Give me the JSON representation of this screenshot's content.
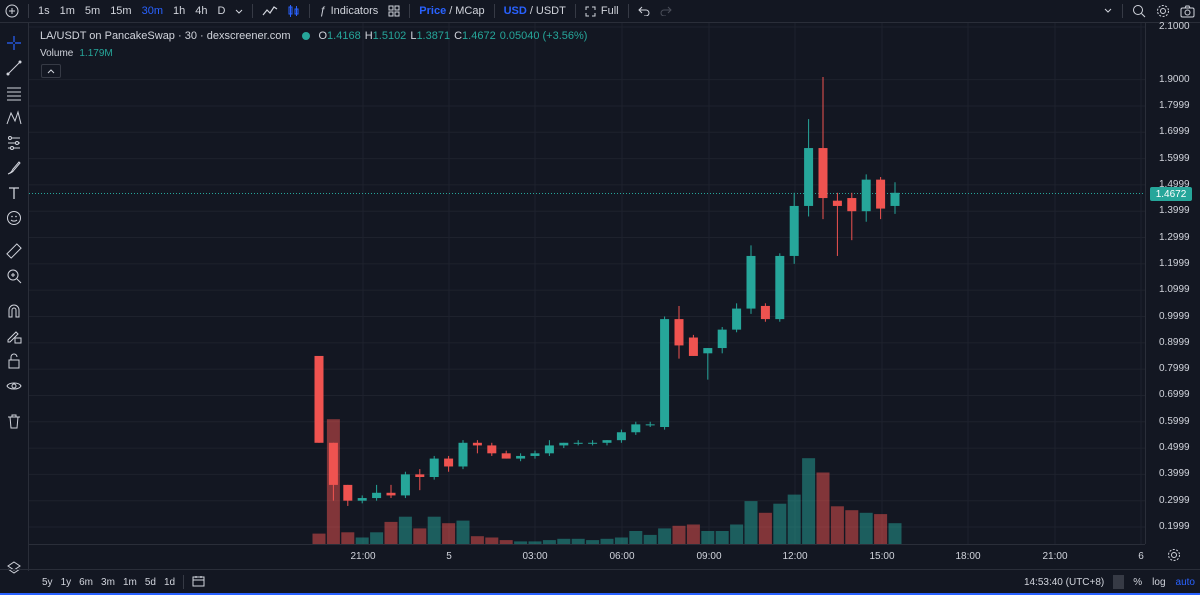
{
  "toolbar": {
    "intervals": [
      "1s",
      "1m",
      "5m",
      "15m",
      "30m",
      "1h",
      "4h",
      "D"
    ],
    "active_interval": "30m",
    "indicators_label": "Indicators",
    "price_label": "Price",
    "mcap_label": "MCap",
    "usd_label": "USD",
    "usdt_label": "USDT",
    "full_label": "Full",
    "slash": "/"
  },
  "legend": {
    "symbol": "LA/USDT on PancakeSwap · 30 · dexscreener.com",
    "o_key": "O",
    "o_val": "1.4168",
    "h_key": "H",
    "h_val": "1.5102",
    "l_key": "L",
    "l_val": "1.3871",
    "c_key": "C",
    "c_val": "1.4672",
    "change": "0.05040 (+3.56%)",
    "volume_label": "Volume",
    "volume_value": "1.179M"
  },
  "price_axis": {
    "ticks": [
      "2.1000",
      "1.9000",
      "1.7999",
      "1.6999",
      "1.5999",
      "1.4999",
      "1.3999",
      "1.2999",
      "1.1999",
      "1.0999",
      "0.9999",
      "0.8999",
      "0.7999",
      "0.6999",
      "0.5999",
      "0.4999",
      "0.3999",
      "0.2999",
      "0.1999"
    ],
    "last_price": "1.4672"
  },
  "time_axis": {
    "ticks": [
      "21:00",
      "5",
      "03:00",
      "06:00",
      "09:00",
      "12:00",
      "15:00",
      "18:00",
      "21:00",
      "6"
    ]
  },
  "bottom": {
    "ranges": [
      "5y",
      "1y",
      "6m",
      "3m",
      "1m",
      "5d",
      "1d"
    ],
    "clock": "14:53:40 (UTC+8)",
    "percent": "%",
    "log": "log",
    "auto": "auto"
  },
  "colors": {
    "up": "#26a69a",
    "down": "#ef5350",
    "bg": "#131722",
    "accent": "#2962ff"
  },
  "chart_data": {
    "type": "candlestick",
    "ohlc": [
      {
        "o": 0.85,
        "h": 0.85,
        "l": 0.52,
        "c": 0.52
      },
      {
        "o": 0.52,
        "h": 0.52,
        "l": 0.3,
        "c": 0.36
      },
      {
        "o": 0.36,
        "h": 0.36,
        "l": 0.28,
        "c": 0.3
      },
      {
        "o": 0.3,
        "h": 0.32,
        "l": 0.29,
        "c": 0.31
      },
      {
        "o": 0.31,
        "h": 0.36,
        "l": 0.3,
        "c": 0.33
      },
      {
        "o": 0.33,
        "h": 0.36,
        "l": 0.31,
        "c": 0.32
      },
      {
        "o": 0.32,
        "h": 0.41,
        "l": 0.31,
        "c": 0.4
      },
      {
        "o": 0.4,
        "h": 0.42,
        "l": 0.34,
        "c": 0.39
      },
      {
        "o": 0.39,
        "h": 0.47,
        "l": 0.38,
        "c": 0.46
      },
      {
        "o": 0.46,
        "h": 0.47,
        "l": 0.41,
        "c": 0.43
      },
      {
        "o": 0.43,
        "h": 0.53,
        "l": 0.42,
        "c": 0.52
      },
      {
        "o": 0.52,
        "h": 0.53,
        "l": 0.48,
        "c": 0.51
      },
      {
        "o": 0.51,
        "h": 0.52,
        "l": 0.47,
        "c": 0.48
      },
      {
        "o": 0.48,
        "h": 0.49,
        "l": 0.46,
        "c": 0.46
      },
      {
        "o": 0.46,
        "h": 0.48,
        "l": 0.45,
        "c": 0.47
      },
      {
        "o": 0.47,
        "h": 0.49,
        "l": 0.46,
        "c": 0.48
      },
      {
        "o": 0.48,
        "h": 0.53,
        "l": 0.47,
        "c": 0.51
      },
      {
        "o": 0.51,
        "h": 0.52,
        "l": 0.5,
        "c": 0.52
      },
      {
        "o": 0.52,
        "h": 0.53,
        "l": 0.51,
        "c": 0.52
      },
      {
        "o": 0.52,
        "h": 0.53,
        "l": 0.51,
        "c": 0.52
      },
      {
        "o": 0.52,
        "h": 0.53,
        "l": 0.51,
        "c": 0.53
      },
      {
        "o": 0.53,
        "h": 0.57,
        "l": 0.52,
        "c": 0.56
      },
      {
        "o": 0.56,
        "h": 0.6,
        "l": 0.55,
        "c": 0.59
      },
      {
        "o": 0.59,
        "h": 0.6,
        "l": 0.58,
        "c": 0.59
      },
      {
        "o": 0.58,
        "h": 1.0,
        "l": 0.57,
        "c": 0.99
      },
      {
        "o": 0.99,
        "h": 1.04,
        "l": 0.84,
        "c": 0.89
      },
      {
        "o": 0.92,
        "h": 0.93,
        "l": 0.85,
        "c": 0.85
      },
      {
        "o": 0.86,
        "h": 0.88,
        "l": 0.76,
        "c": 0.88
      },
      {
        "o": 0.88,
        "h": 0.96,
        "l": 0.86,
        "c": 0.95
      },
      {
        "o": 0.95,
        "h": 1.05,
        "l": 0.94,
        "c": 1.03
      },
      {
        "o": 1.03,
        "h": 1.27,
        "l": 1.01,
        "c": 1.23
      },
      {
        "o": 1.04,
        "h": 1.05,
        "l": 0.98,
        "c": 0.99
      },
      {
        "o": 0.99,
        "h": 1.24,
        "l": 0.98,
        "c": 1.23
      },
      {
        "o": 1.23,
        "h": 1.47,
        "l": 1.2,
        "c": 1.42
      },
      {
        "o": 1.42,
        "h": 1.75,
        "l": 1.38,
        "c": 1.64
      },
      {
        "o": 1.64,
        "h": 1.91,
        "l": 1.37,
        "c": 1.45
      },
      {
        "o": 1.44,
        "h": 1.47,
        "l": 1.23,
        "c": 1.42
      },
      {
        "o": 1.45,
        "h": 1.47,
        "l": 1.29,
        "c": 1.4
      },
      {
        "o": 1.4,
        "h": 1.54,
        "l": 1.36,
        "c": 1.52
      },
      {
        "o": 1.52,
        "h": 1.53,
        "l": 1.37,
        "c": 1.41
      },
      {
        "o": 1.42,
        "h": 1.51,
        "l": 1.39,
        "c": 1.47
      }
    ],
    "volume_scale": "relative",
    "volume": [
      0.08,
      0.96,
      0.09,
      0.05,
      0.09,
      0.17,
      0.21,
      0.12,
      0.21,
      0.16,
      0.18,
      0.06,
      0.05,
      0.03,
      0.02,
      0.02,
      0.03,
      0.04,
      0.04,
      0.03,
      0.04,
      0.05,
      0.1,
      0.07,
      0.12,
      0.14,
      0.15,
      0.1,
      0.1,
      0.15,
      0.33,
      0.24,
      0.31,
      0.38,
      0.66,
      0.55,
      0.29,
      0.26,
      0.24,
      0.23,
      0.16
    ],
    "ylim": [
      0.15,
      2.12
    ],
    "last": 1.4672
  }
}
